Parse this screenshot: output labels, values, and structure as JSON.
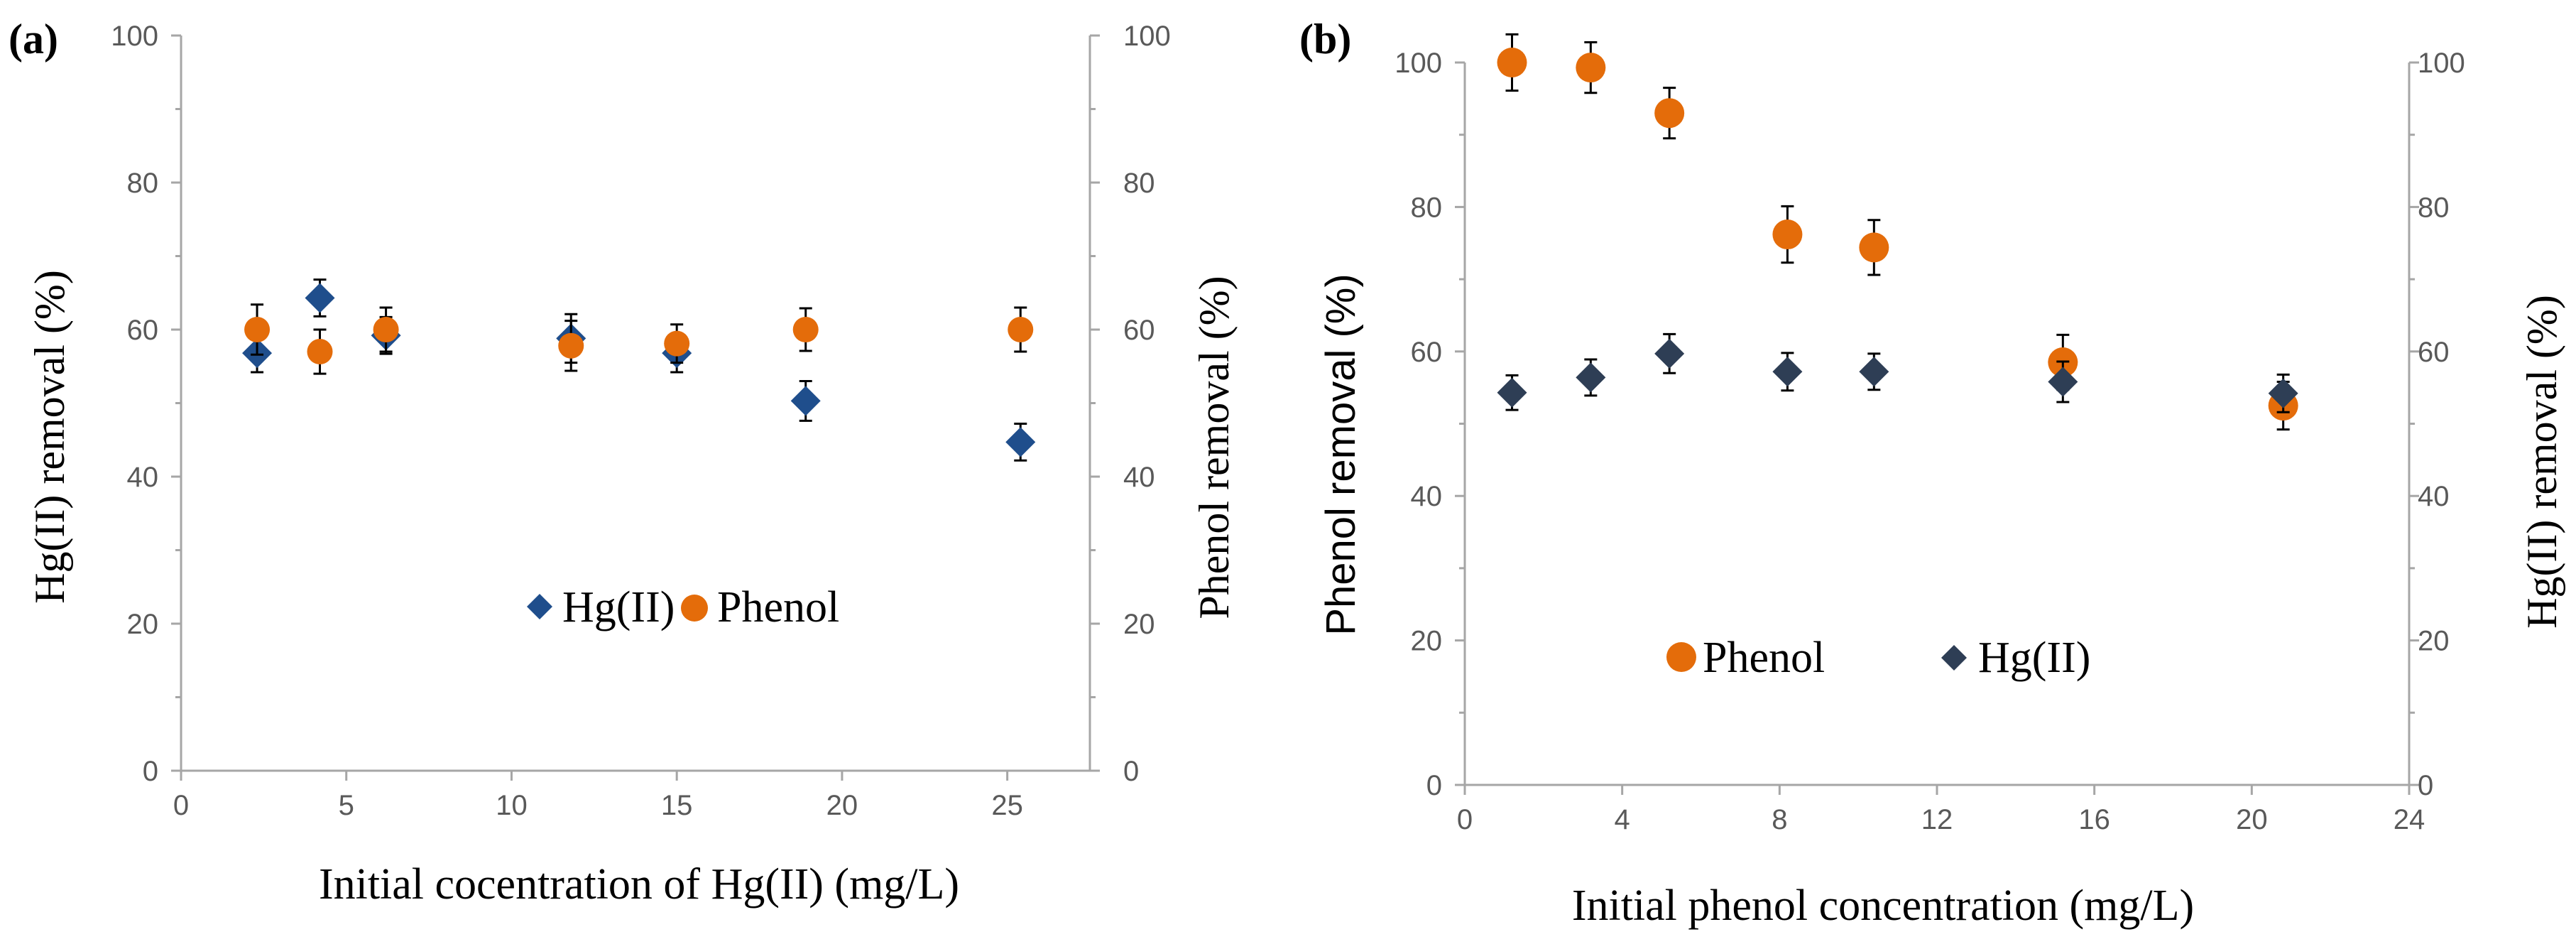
{
  "colors": {
    "hg_a": "#1f4e8c",
    "hg_b": "#2e3e55",
    "phenol": "#e46c0a",
    "axis": "#a6a6a6",
    "tick_text": "#595959",
    "error_bar": "#000000"
  },
  "chart_data": [
    {
      "panel_label": "(a)",
      "type": "scatter",
      "xlabel": "Initial cocentration of Hg(II) (mg/L)",
      "ylabel_left": "Hg(II) removal (%)",
      "ylabel_right": "Phenol removal (%)",
      "xlim": [
        0,
        27.5
      ],
      "ylim": [
        0,
        100
      ],
      "x_ticks": [
        0,
        5,
        10,
        15,
        20,
        25
      ],
      "x_tick_labels": [
        "0",
        "5",
        "10",
        "15",
        "20",
        "25"
      ],
      "y_ticks": [
        0,
        20,
        40,
        60,
        80,
        100
      ],
      "y_tick_labels": [
        "0",
        "20",
        "40",
        "60",
        "80",
        "100"
      ],
      "y_ticks_right": [
        0,
        20,
        40,
        60,
        80,
        100
      ],
      "y_tick_labels_right": [
        "0",
        "20",
        "40",
        "60",
        "80",
        "100"
      ],
      "legend": [
        "Hg(II)",
        "Phenol"
      ],
      "legend_position": "lower-center",
      "series": [
        {
          "name": "Hg(II)",
          "marker": "diamond",
          "color": "#1f4e8c",
          "axis": "left",
          "x": [
            2.3,
            4.2,
            6.2,
            11.8,
            15.0,
            18.9,
            25.4
          ],
          "y": [
            56.8,
            64.3,
            59.2,
            58.8,
            56.8,
            50.3,
            44.7
          ],
          "err": [
            2.6,
            2.5,
            2.5,
            3.3,
            2.6,
            2.7,
            2.5
          ]
        },
        {
          "name": "Phenol",
          "marker": "circle",
          "color": "#e46c0a",
          "axis": "right",
          "x": [
            2.3,
            4.2,
            6.2,
            11.8,
            15.0,
            18.9,
            25.4
          ],
          "y": [
            60.0,
            57.0,
            60.0,
            57.8,
            58.1,
            60.0,
            60.0
          ],
          "err": [
            3.4,
            3.0,
            3.0,
            3.4,
            2.6,
            2.9,
            3.0
          ]
        }
      ]
    },
    {
      "panel_label": "(b)",
      "type": "scatter",
      "xlabel": "Initial phenol concentration (mg/L)",
      "ylabel_left": "Phenol removal (%)",
      "ylabel_right": "Hg(II) removal (%)",
      "xlim": [
        0,
        24
      ],
      "ylim": [
        0,
        100
      ],
      "x_ticks": [
        0,
        4,
        8,
        12,
        16,
        20,
        24
      ],
      "x_tick_labels": [
        "0",
        "4",
        "8",
        "12",
        "16",
        "20",
        "24"
      ],
      "y_ticks": [
        0,
        20,
        40,
        60,
        80,
        100
      ],
      "y_tick_labels": [
        "0",
        "20",
        "40",
        "60",
        "80",
        "100"
      ],
      "y_ticks_right": [
        0,
        20,
        40,
        60,
        80,
        100
      ],
      "y_tick_labels_right": [
        "0",
        "20",
        "40",
        "60",
        "80",
        "100"
      ],
      "legend": [
        "Phenol",
        "Hg(II)"
      ],
      "legend_position": "lower-center",
      "series": [
        {
          "name": "Phenol",
          "marker": "circle",
          "color": "#e46c0a",
          "axis": "left",
          "x": [
            1.2,
            3.2,
            5.2,
            8.2,
            10.4,
            15.2,
            20.8
          ],
          "y": [
            100.0,
            99.3,
            93.0,
            76.2,
            74.4,
            58.5,
            52.5
          ],
          "err": [
            3.9,
            3.5,
            3.5,
            3.9,
            3.8,
            3.8,
            3.3
          ]
        },
        {
          "name": "Hg(II)",
          "marker": "diamond",
          "color": "#2e3e55",
          "axis": "right",
          "x": [
            1.2,
            3.2,
            5.2,
            8.2,
            10.4,
            15.2,
            20.8
          ],
          "y": [
            54.3,
            56.4,
            59.7,
            57.2,
            57.2,
            55.8,
            54.2
          ],
          "err": [
            2.4,
            2.5,
            2.7,
            2.6,
            2.5,
            2.8,
            2.6
          ]
        }
      ]
    }
  ]
}
